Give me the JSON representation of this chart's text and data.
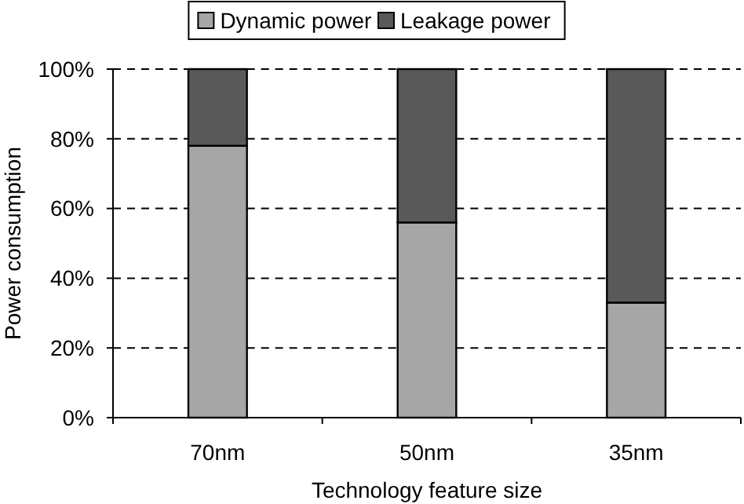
{
  "chart_data": {
    "type": "bar",
    "stacked": true,
    "xlabel": "Technology feature size",
    "ylabel": "Power consumption",
    "categories": [
      "70nm",
      "50nm",
      "35nm"
    ],
    "series": [
      {
        "name": "Dynamic power",
        "color": "#a6a6a6",
        "values": [
          78,
          56,
          33
        ]
      },
      {
        "name": "Leakage power",
        "color": "#595959",
        "values": [
          22,
          44,
          67
        ]
      }
    ],
    "ylim": [
      0,
      100
    ],
    "yticks": [
      {
        "value": 0,
        "label": "0%"
      },
      {
        "value": 20,
        "label": "20%"
      },
      {
        "value": 40,
        "label": "40%"
      },
      {
        "value": 60,
        "label": "60%"
      },
      {
        "value": 80,
        "label": "80%"
      },
      {
        "value": 100,
        "label": "100%"
      }
    ],
    "grid": "y",
    "legend": "top"
  }
}
